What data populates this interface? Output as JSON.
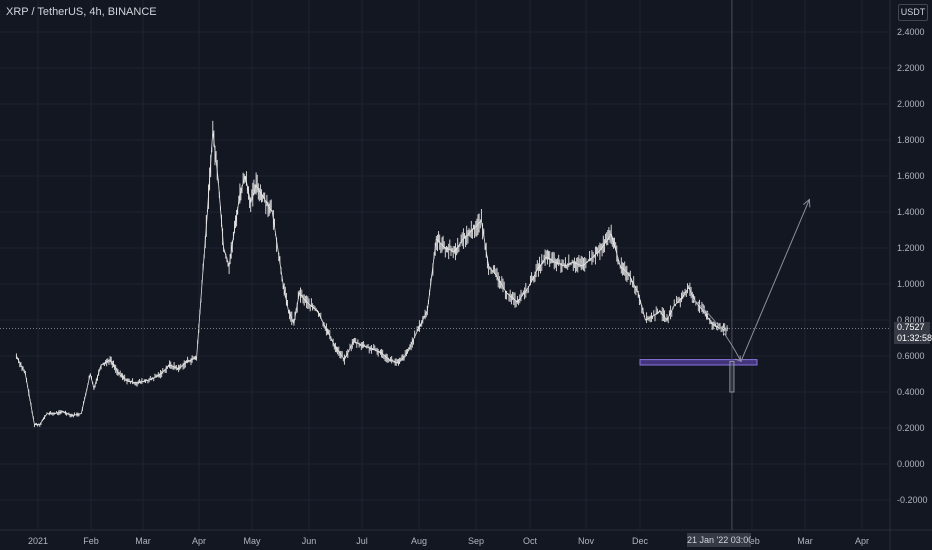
{
  "header": {
    "symbol": "XRP / TetherUS, 4h, BINANCE",
    "currency": "USDT"
  },
  "last_price": {
    "value": "0.7527",
    "countdown": "01:32:58"
  },
  "cursor": {
    "date_label": "21 Jan '22 03:00"
  },
  "colors": {
    "background": "#131722",
    "grid": "#1f2230",
    "candle": "#e6e6e6",
    "support_zone": "#6a4fc4",
    "arrow": "#8a8f9c"
  },
  "chart_data": {
    "type": "line",
    "title": "",
    "xlabel": "",
    "ylabel": "",
    "ylim": [
      -0.3,
      2.55
    ],
    "x_ticks": [
      "2021",
      "Feb",
      "Mar",
      "Apr",
      "May",
      "Jun",
      "Jul",
      "Aug",
      "Sep",
      "Oct",
      "Nov",
      "Dec",
      "Feb",
      "Mar",
      "Apr"
    ],
    "y_ticks": [
      "2.4000",
      "2.2000",
      "2.0000",
      "1.8000",
      "1.6000",
      "1.4000",
      "1.2000",
      "1.0000",
      "0.8000",
      "0.6000",
      "0.4000",
      "0.2000",
      "0.0000",
      "-0.2000"
    ],
    "series": [
      {
        "x": [
          "2020-12-20",
          "2020-12-25",
          "2020-12-30",
          "2021-01-02",
          "2021-01-06",
          "2021-01-10",
          "2021-01-15",
          "2021-01-20",
          "2021-01-25",
          "2021-01-30",
          "2021-02-01",
          "2021-02-05",
          "2021-02-10",
          "2021-02-15",
          "2021-02-20",
          "2021-02-25",
          "2021-03-01",
          "2021-03-05",
          "2021-03-10",
          "2021-03-15",
          "2021-03-20",
          "2021-03-25",
          "2021-03-30",
          "2021-04-02",
          "2021-04-05",
          "2021-04-08",
          "2021-04-11",
          "2021-04-14",
          "2021-04-17",
          "2021-04-20",
          "2021-04-23",
          "2021-04-26",
          "2021-04-29",
          "2021-05-02",
          "2021-05-05",
          "2021-05-08",
          "2021-05-11",
          "2021-05-14",
          "2021-05-17",
          "2021-05-20",
          "2021-05-23",
          "2021-05-26",
          "2021-05-30",
          "2021-06-05",
          "2021-06-10",
          "2021-06-15",
          "2021-06-20",
          "2021-06-25",
          "2021-06-30",
          "2021-07-05",
          "2021-07-10",
          "2021-07-15",
          "2021-07-20",
          "2021-07-25",
          "2021-07-31",
          "2021-08-05",
          "2021-08-10",
          "2021-08-15",
          "2021-08-20",
          "2021-08-25",
          "2021-08-30",
          "2021-09-04",
          "2021-09-08",
          "2021-09-12",
          "2021-09-18",
          "2021-09-24",
          "2021-09-30",
          "2021-10-05",
          "2021-10-10",
          "2021-10-15",
          "2021-10-20",
          "2021-10-25",
          "2021-10-30",
          "2021-11-05",
          "2021-11-10",
          "2021-11-15",
          "2021-11-20",
          "2021-11-25",
          "2021-11-30",
          "2021-12-04",
          "2021-12-08",
          "2021-12-12",
          "2021-12-16",
          "2021-12-20",
          "2021-12-24",
          "2021-12-28",
          "2022-01-01",
          "2022-01-05",
          "2022-01-10",
          "2022-01-15",
          "2022-01-19"
        ],
        "values": [
          0.6,
          0.5,
          0.22,
          0.22,
          0.28,
          0.28,
          0.29,
          0.27,
          0.28,
          0.5,
          0.42,
          0.55,
          0.58,
          0.5,
          0.46,
          0.45,
          0.46,
          0.47,
          0.5,
          0.55,
          0.53,
          0.57,
          0.59,
          1.0,
          1.4,
          1.85,
          1.58,
          1.2,
          1.1,
          1.3,
          1.5,
          1.6,
          1.45,
          1.55,
          1.5,
          1.45,
          1.4,
          1.2,
          1.0,
          0.85,
          0.78,
          0.95,
          0.9,
          0.85,
          0.75,
          0.65,
          0.58,
          0.68,
          0.66,
          0.64,
          0.62,
          0.58,
          0.56,
          0.62,
          0.75,
          0.85,
          1.25,
          1.2,
          1.18,
          1.25,
          1.3,
          1.35,
          1.1,
          1.05,
          0.95,
          0.9,
          0.98,
          1.08,
          1.15,
          1.12,
          1.1,
          1.12,
          1.1,
          1.15,
          1.2,
          1.28,
          1.1,
          1.05,
          0.95,
          0.8,
          0.82,
          0.85,
          0.8,
          0.88,
          0.92,
          0.98,
          0.9,
          0.85,
          0.78,
          0.75,
          0.7527
        ]
      }
    ],
    "support_zone": [
      0.55,
      0.58
    ],
    "projection": {
      "from": [
        "2021-12-30",
        0.92
      ],
      "via": [
        "2022-01-26",
        0.57
      ],
      "to": [
        "2022-03-05",
        1.47
      ]
    },
    "cursor_date": "2022-01-21",
    "last_value": 0.7527,
    "grid": true
  }
}
